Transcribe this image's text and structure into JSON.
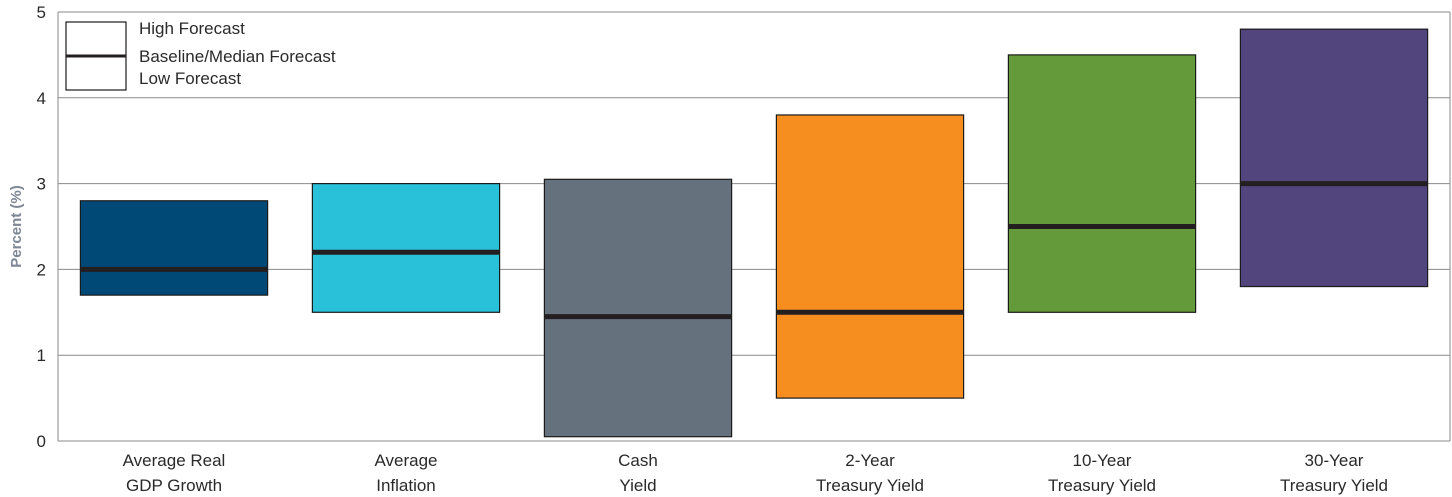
{
  "chart_data": {
    "type": "bar",
    "title": "",
    "ylabel": "Percent (%)",
    "xlabel": "",
    "ylim": [
      0,
      5
    ],
    "yticks": [
      "0",
      "1",
      "2",
      "3",
      "4",
      "5"
    ],
    "grid": true,
    "legend_position": "top-left",
    "legend": [
      {
        "label": "High Forecast",
        "key": "high"
      },
      {
        "label": "Baseline/Median Forecast",
        "key": "median"
      },
      {
        "label": "Low Forecast",
        "key": "low"
      }
    ],
    "categories": [
      {
        "line1": "Average Real",
        "line2": "GDP Growth",
        "low": 1.7,
        "median": 2.0,
        "high": 2.8,
        "color": "#004876"
      },
      {
        "line1": "Average",
        "line2": "Inflation",
        "low": 1.5,
        "median": 2.2,
        "high": 3.0,
        "color": "#29c1d9"
      },
      {
        "line1": "Cash",
        "line2": "Yield",
        "low": 0.05,
        "median": 1.45,
        "high": 3.05,
        "color": "#66717e"
      },
      {
        "line1": "2-Year",
        "line2": "Treasury Yield",
        "low": 0.5,
        "median": 1.5,
        "high": 3.8,
        "color": "#f58e1f"
      },
      {
        "line1": "10-Year",
        "line2": "Treasury Yield",
        "low": 1.5,
        "median": 2.5,
        "high": 4.5,
        "color": "#659a3b"
      },
      {
        "line1": "30-Year",
        "line2": "Treasury Yield",
        "low": 1.8,
        "median": 3.0,
        "high": 4.8,
        "color": "#52447c"
      }
    ]
  }
}
